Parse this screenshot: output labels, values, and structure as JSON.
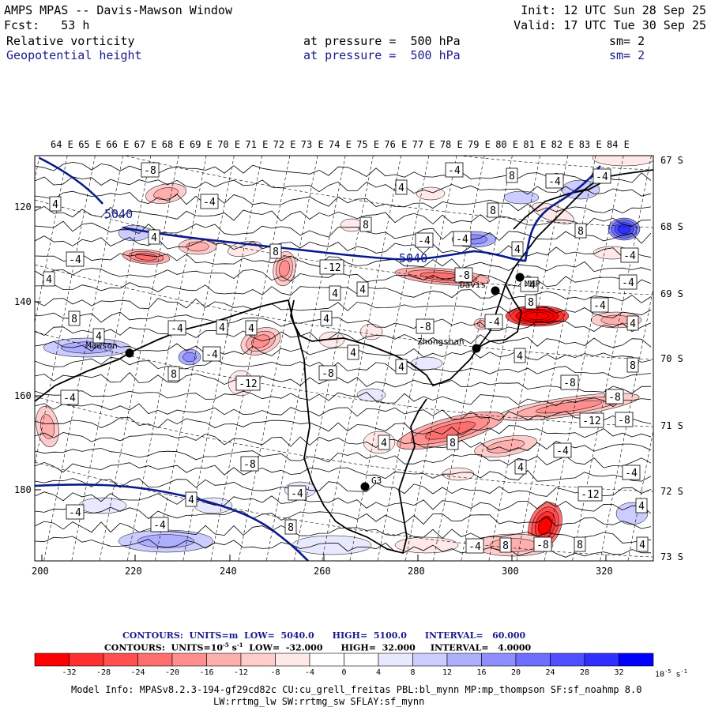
{
  "header": {
    "model_title": "AMPS MPAS -- Davis-Mawson Window",
    "forecast": "Fcst:   53 h",
    "init": "Init: 12 UTC Sun 28 Sep 25",
    "valid": "Valid: 17 UTC Tue 30 Sep 25",
    "field1": {
      "name": "Relative vorticity",
      "level": "at pressure =  500 hPa",
      "smooth": "sm= 2"
    },
    "field2": {
      "name": "Geopotential height",
      "level": "at pressure =  500 hPa",
      "smooth": "sm= 2"
    }
  },
  "top_lon_labels": [
    "64 E",
    "65 E",
    "66 E",
    "67 E",
    "68 E",
    "69 E",
    "70 E",
    "71 E",
    "72 E",
    "73 E",
    "74 E",
    "75 E",
    "76 E",
    "77 E",
    "78 E",
    "79 E",
    "80 E",
    "81 E",
    "82 E",
    "83 E",
    "84 E"
  ],
  "right_lat_labels": [
    "67 S",
    "68 S",
    "69 S",
    "70 S",
    "71 S",
    "72 S",
    "73 S"
  ],
  "left_y_ticks": [
    "120",
    "140",
    "160",
    "180"
  ],
  "bottom_x_ticks": [
    "200",
    "220",
    "240",
    "260",
    "280",
    "300",
    "320"
  ],
  "stations": [
    {
      "name": "Mawson"
    },
    {
      "name": "Davis"
    },
    {
      "name": "MHP"
    },
    {
      "name": "Zhongshan"
    },
    {
      "name": "G3"
    }
  ],
  "height_contour_labels": [
    "5040",
    "5040"
  ],
  "vorticity_box_labels": [
    "-8",
    "4",
    "-4",
    "4",
    "-4",
    "4",
    "8",
    "-4",
    "-4",
    "8",
    "-12",
    "4",
    "4",
    "4",
    "-8",
    "4",
    "8",
    "-4",
    "4",
    "-4",
    "8",
    "4",
    "8",
    "-4",
    "4",
    "-4",
    "8",
    "-4",
    "-4",
    "-4",
    "8",
    "4",
    "-4",
    "-4",
    "4",
    "8",
    "-12",
    "-8",
    "4",
    "-4",
    "-8",
    "-12",
    "-8",
    "-8",
    "8",
    "-8",
    "4",
    "-4",
    "-4",
    "-4",
    "8",
    "-12",
    "8",
    "-4",
    "8",
    "-8",
    "-4",
    "4",
    "4",
    "4",
    "-8",
    "4",
    "4",
    "8",
    "-4",
    "4",
    "-4"
  ],
  "contours_legend": {
    "line1": "CONTOURS:  UNITS=m  LOW=  5040.0      HIGH=  5100.0      INTERVAL=   60.000",
    "line2": "CONTOURS:  UNITS=10",
    "line2_exp": "-5",
    "line2_unit": " s",
    "line2_unit_exp": "-1",
    "line2_rest": "  LOW=  -32.000      HIGH=  32.000     INTERVAL=   4.0000"
  },
  "colorbar": {
    "colors": [
      "#ff0000",
      "#ff2f2f",
      "#ff4f4f",
      "#ff6e6e",
      "#ff8e8e",
      "#ffaeae",
      "#ffcccc",
      "#ffe8e8",
      "#ffffff",
      "#ffffff",
      "#e8e8ff",
      "#ccccff",
      "#aeaeff",
      "#8e8eff",
      "#6e6eff",
      "#4f4fff",
      "#2f2fff",
      "#0000ff"
    ],
    "labels": [
      "-32",
      "-28",
      "-24",
      "-20",
      "-16",
      "-12",
      "-8",
      "-4",
      "0",
      "4",
      "8",
      "12",
      "16",
      "20",
      "24",
      "28",
      "32"
    ],
    "unit": "10",
    "unit_exp": "-5",
    "unit_tail": " s",
    "unit_tail_exp": "-1"
  },
  "model_info": {
    "line1": "Model Info: MPASv8.2.3-194-gf29cd82c CU:cu_grell_freitas PBL:bl_mynn MP:mp_thompson SF:sf_noahmp 8.0",
    "line2": "LW:rrtmg_lw SW:rrtmg_sw SFLAY:sf_mynn"
  },
  "colors": {
    "height_contour": "#0a1a8c",
    "coast": "#000000",
    "text_blue": "#1a1a8c"
  }
}
